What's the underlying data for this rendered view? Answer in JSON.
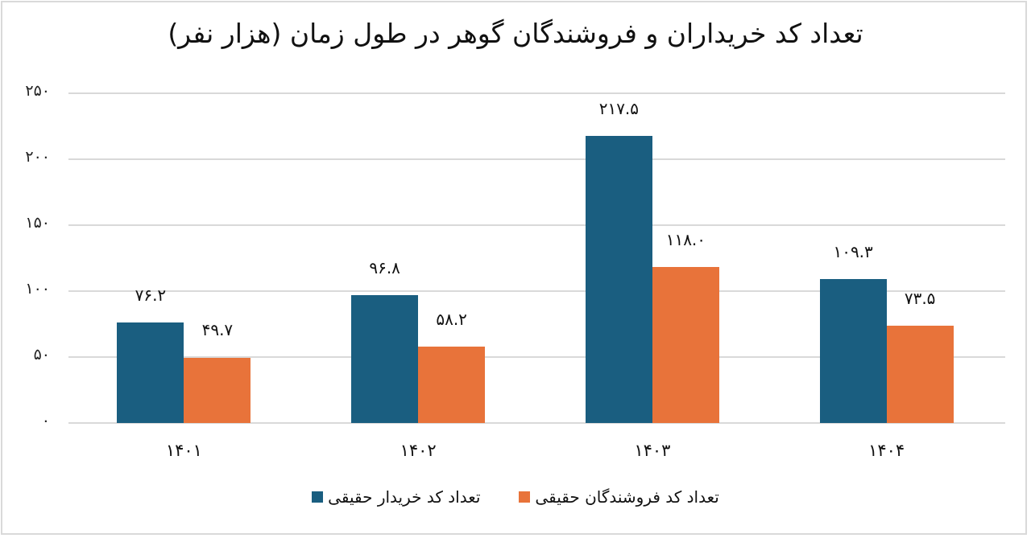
{
  "chart_data": {
    "type": "bar",
    "title": "تعداد کد خریداران و فروشندگان گوهر در طول زمان (هزار نفر)",
    "xlabel": "",
    "ylabel": "",
    "categories": [
      "۱۴۰۱",
      "۱۴۰۲",
      "۱۴۰۳",
      "۱۴۰۴"
    ],
    "series": [
      {
        "name": "تعداد کد خریدار حقیقی",
        "color": "#1A5E80",
        "values": [
          76.2,
          96.8,
          217.5,
          109.3
        ],
        "labels": [
          "۷۶.۲",
          "۹۶.۸",
          "۲۱۷.۵",
          "۱۰۹.۳"
        ]
      },
      {
        "name": "تعداد کد فروشندگان حقیقی",
        "color": "#E8733A",
        "values": [
          49.7,
          58.2,
          118.0,
          73.5
        ],
        "labels": [
          "۴۹.۷",
          "۵۸.۲",
          "۱۱۸.۰",
          "۷۳.۵"
        ]
      }
    ],
    "ylim": [
      0,
      250
    ],
    "yticks": [
      0,
      50,
      100,
      150,
      200,
      250
    ],
    "ytick_labels": [
      "۰",
      "۵۰",
      "۱۰۰",
      "۱۵۰",
      "۲۰۰",
      "۲۵۰"
    ],
    "grid": true,
    "legend_position": "bottom",
    "data_labels": true
  }
}
